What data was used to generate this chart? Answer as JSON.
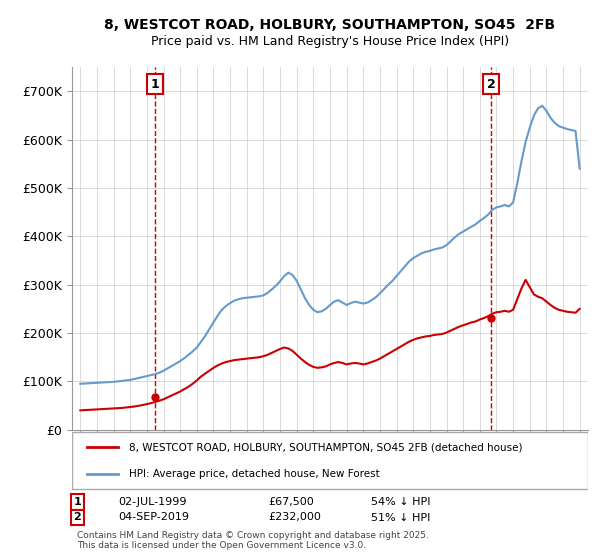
{
  "title": "8, WESTCOT ROAD, HOLBURY, SOUTHAMPTON, SO45  2FB",
  "subtitle": "Price paid vs. HM Land Registry's House Price Index (HPI)",
  "legend_line1": "8, WESTCOT ROAD, HOLBURY, SOUTHAMPTON, SO45 2FB (detached house)",
  "legend_line2": "HPI: Average price, detached house, New Forest",
  "footnote": "Contains HM Land Registry data © Crown copyright and database right 2025.\nThis data is licensed under the Open Government Licence v3.0.",
  "point1_label": "1",
  "point1_date": "02-JUL-1999",
  "point1_price": "£67,500",
  "point1_hpi": "54% ↓ HPI",
  "point1_x": 1999.5,
  "point1_y": 67500,
  "point2_label": "2",
  "point2_date": "04-SEP-2019",
  "point2_price": "£232,000",
  "point2_hpi": "51% ↓ HPI",
  "point2_x": 2019.67,
  "point2_y": 232000,
  "red_color": "#cc0000",
  "blue_color": "#6699cc",
  "background_color": "#ffffff",
  "grid_color": "#cccccc",
  "ylim": [
    0,
    750000
  ],
  "xlim": [
    1994.5,
    2025.5
  ],
  "yticks": [
    0,
    100000,
    200000,
    300000,
    400000,
    500000,
    600000,
    700000
  ],
  "xticks": [
    1995,
    1996,
    1997,
    1998,
    1999,
    2000,
    2001,
    2002,
    2003,
    2004,
    2005,
    2006,
    2007,
    2008,
    2009,
    2010,
    2011,
    2012,
    2013,
    2014,
    2015,
    2016,
    2017,
    2018,
    2019,
    2020,
    2021,
    2022,
    2023,
    2024,
    2025
  ],
  "hpi_x": [
    1995.0,
    1995.25,
    1995.5,
    1995.75,
    1996.0,
    1996.25,
    1996.5,
    1996.75,
    1997.0,
    1997.25,
    1997.5,
    1997.75,
    1998.0,
    1998.25,
    1998.5,
    1998.75,
    1999.0,
    1999.25,
    1999.5,
    1999.75,
    2000.0,
    2000.25,
    2000.5,
    2000.75,
    2001.0,
    2001.25,
    2001.5,
    2001.75,
    2002.0,
    2002.25,
    2002.5,
    2002.75,
    2003.0,
    2003.25,
    2003.5,
    2003.75,
    2004.0,
    2004.25,
    2004.5,
    2004.75,
    2005.0,
    2005.25,
    2005.5,
    2005.75,
    2006.0,
    2006.25,
    2006.5,
    2006.75,
    2007.0,
    2007.25,
    2007.5,
    2007.75,
    2008.0,
    2008.25,
    2008.5,
    2008.75,
    2009.0,
    2009.25,
    2009.5,
    2009.75,
    2010.0,
    2010.25,
    2010.5,
    2010.75,
    2011.0,
    2011.25,
    2011.5,
    2011.75,
    2012.0,
    2012.25,
    2012.5,
    2012.75,
    2013.0,
    2013.25,
    2013.5,
    2013.75,
    2014.0,
    2014.25,
    2014.5,
    2014.75,
    2015.0,
    2015.25,
    2015.5,
    2015.75,
    2016.0,
    2016.25,
    2016.5,
    2016.75,
    2017.0,
    2017.25,
    2017.5,
    2017.75,
    2018.0,
    2018.25,
    2018.5,
    2018.75,
    2019.0,
    2019.25,
    2019.5,
    2019.75,
    2020.0,
    2020.25,
    2020.5,
    2020.75,
    2021.0,
    2021.25,
    2021.5,
    2021.75,
    2022.0,
    2022.25,
    2022.5,
    2022.75,
    2023.0,
    2023.25,
    2023.5,
    2023.75,
    2024.0,
    2024.25,
    2024.5,
    2024.75,
    2025.0
  ],
  "hpi_y": [
    95000,
    95500,
    96000,
    96500,
    97000,
    97500,
    98000,
    98500,
    99000,
    100000,
    101000,
    102000,
    103000,
    105000,
    107000,
    109000,
    111000,
    113000,
    115000,
    118000,
    122000,
    127000,
    132000,
    137000,
    142000,
    148000,
    155000,
    162000,
    170000,
    182000,
    194000,
    208000,
    222000,
    236000,
    248000,
    256000,
    262000,
    267000,
    270000,
    272000,
    273000,
    274000,
    275000,
    276000,
    278000,
    283000,
    290000,
    298000,
    307000,
    318000,
    325000,
    320000,
    308000,
    290000,
    272000,
    258000,
    248000,
    243000,
    245000,
    250000,
    258000,
    265000,
    268000,
    263000,
    258000,
    262000,
    265000,
    263000,
    261000,
    263000,
    268000,
    274000,
    282000,
    291000,
    300000,
    308000,
    318000,
    328000,
    338000,
    348000,
    355000,
    360000,
    365000,
    368000,
    370000,
    373000,
    375000,
    377000,
    382000,
    390000,
    398000,
    405000,
    410000,
    415000,
    420000,
    425000,
    432000,
    438000,
    445000,
    455000,
    460000,
    462000,
    465000,
    462000,
    470000,
    510000,
    555000,
    595000,
    625000,
    650000,
    665000,
    670000,
    660000,
    645000,
    635000,
    628000,
    625000,
    622000,
    620000,
    618000,
    540000
  ],
  "red_x": [
    1995.0,
    1995.25,
    1995.5,
    1995.75,
    1996.0,
    1996.25,
    1996.5,
    1996.75,
    1997.0,
    1997.25,
    1997.5,
    1997.75,
    1998.0,
    1998.25,
    1998.5,
    1998.75,
    1999.0,
    1999.25,
    1999.5,
    1999.75,
    2000.0,
    2000.25,
    2000.5,
    2000.75,
    2001.0,
    2001.25,
    2001.5,
    2001.75,
    2002.0,
    2002.25,
    2002.5,
    2002.75,
    2003.0,
    2003.25,
    2003.5,
    2003.75,
    2004.0,
    2004.25,
    2004.5,
    2004.75,
    2005.0,
    2005.25,
    2005.5,
    2005.75,
    2006.0,
    2006.25,
    2006.5,
    2006.75,
    2007.0,
    2007.25,
    2007.5,
    2007.75,
    2008.0,
    2008.25,
    2008.5,
    2008.75,
    2009.0,
    2009.25,
    2009.5,
    2009.75,
    2010.0,
    2010.25,
    2010.5,
    2010.75,
    2011.0,
    2011.25,
    2011.5,
    2011.75,
    2012.0,
    2012.25,
    2012.5,
    2012.75,
    2013.0,
    2013.25,
    2013.5,
    2013.75,
    2014.0,
    2014.25,
    2014.5,
    2014.75,
    2015.0,
    2015.25,
    2015.5,
    2015.75,
    2016.0,
    2016.25,
    2016.5,
    2016.75,
    2017.0,
    2017.25,
    2017.5,
    2017.75,
    2018.0,
    2018.25,
    2018.5,
    2018.75,
    2019.0,
    2019.25,
    2019.5,
    2019.75,
    2020.0,
    2020.25,
    2020.5,
    2020.75,
    2021.0,
    2021.25,
    2021.5,
    2021.75,
    2022.0,
    2022.25,
    2022.5,
    2022.75,
    2023.0,
    2023.25,
    2023.5,
    2023.75,
    2024.0,
    2024.25,
    2024.5,
    2024.75,
    2025.0
  ],
  "red_y": [
    40000,
    40500,
    41000,
    41500,
    42000,
    42500,
    43000,
    43500,
    44000,
    44500,
    45000,
    46000,
    47000,
    48000,
    49500,
    51000,
    53000,
    55000,
    57500,
    60000,
    63000,
    67000,
    71000,
    75000,
    79000,
    84000,
    89000,
    95000,
    102000,
    110000,
    116000,
    122000,
    128000,
    133000,
    137000,
    140000,
    142000,
    144000,
    145000,
    146000,
    147000,
    148000,
    149000,
    150000,
    152000,
    155000,
    159000,
    163000,
    167000,
    170000,
    168000,
    163000,
    155000,
    147000,
    140000,
    134000,
    130000,
    128000,
    129000,
    131000,
    135000,
    138000,
    140000,
    138000,
    135000,
    137000,
    138000,
    137000,
    135000,
    137000,
    140000,
    143000,
    147000,
    152000,
    157000,
    162000,
    167000,
    172000,
    177000,
    182000,
    186000,
    189000,
    191000,
    193000,
    194000,
    196000,
    197000,
    198000,
    201000,
    205000,
    209000,
    213000,
    216000,
    219000,
    222000,
    224000,
    228000,
    231000,
    235000,
    240000,
    243000,
    244000,
    246000,
    244000,
    248000,
    270000,
    292000,
    310000,
    295000,
    280000,
    275000,
    272000,
    265000,
    258000,
    252000,
    248000,
    246000,
    244000,
    243000,
    242000,
    250000
  ]
}
